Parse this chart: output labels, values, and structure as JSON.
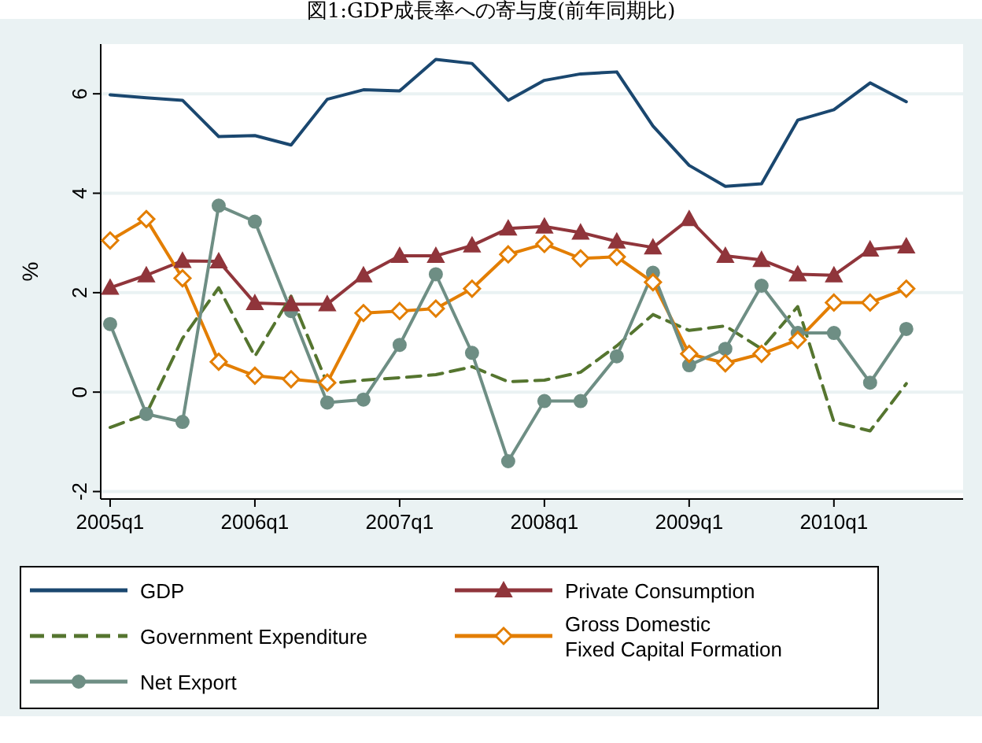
{
  "chart_data": {
    "type": "line",
    "title": "図1:GDP成長率への寄与度(前年同期比)",
    "ylabel": "%",
    "categories": [
      "2005q1",
      null,
      null,
      null,
      "2006q1",
      null,
      null,
      null,
      "2007q1",
      null,
      null,
      null,
      "2008q1",
      null,
      null,
      null,
      "2009q1",
      null,
      null,
      null,
      "2010q1",
      null,
      null
    ],
    "ylim": [
      -2.15,
      7.0
    ],
    "yticks": [
      -2,
      0,
      2,
      4,
      6
    ],
    "grid": "y",
    "legend": "bottom",
    "series": [
      {
        "name": "GDP",
        "color": "#1a476f",
        "marker": "none",
        "line_style": "solid",
        "values": [
          5.98,
          5.92,
          5.87,
          5.14,
          5.16,
          4.97,
          5.89,
          6.08,
          6.06,
          6.69,
          6.61,
          5.87,
          6.27,
          6.4,
          6.44,
          5.35,
          4.56,
          4.14,
          4.19,
          5.47,
          5.68,
          6.22,
          5.84
        ]
      },
      {
        "name": "Private Consumption",
        "color": "#90353b",
        "marker": "triangle",
        "line_style": "solid",
        "values": [
          2.1,
          2.35,
          2.64,
          2.63,
          1.79,
          1.77,
          1.77,
          2.35,
          2.74,
          2.74,
          2.95,
          3.29,
          3.33,
          3.21,
          3.03,
          2.91,
          3.48,
          2.74,
          2.66,
          2.37,
          2.35,
          2.87,
          2.93
        ]
      },
      {
        "name": "Government Expenditure",
        "color": "#55752f",
        "marker": "none",
        "line_style": "dashed",
        "values": [
          -0.71,
          -0.44,
          1.08,
          2.1,
          0.72,
          1.93,
          0.17,
          0.24,
          0.29,
          0.35,
          0.51,
          0.21,
          0.24,
          0.4,
          0.93,
          1.56,
          1.24,
          1.33,
          0.87,
          1.72,
          -0.6,
          -0.78,
          0.17
        ]
      },
      {
        "name": "Gross Domestic Fixed Capital Formation",
        "color": "#e37e00",
        "marker": "diamond",
        "line_style": "solid",
        "values": [
          3.05,
          3.48,
          2.29,
          0.61,
          0.33,
          0.26,
          0.19,
          1.59,
          1.63,
          1.68,
          2.08,
          2.77,
          2.98,
          2.69,
          2.72,
          2.21,
          0.77,
          0.58,
          0.77,
          1.05,
          1.8,
          1.8,
          2.08
        ]
      },
      {
        "name": "Net Export",
        "color": "#6e8e84",
        "marker": "circle",
        "line_style": "solid",
        "values": [
          1.37,
          -0.44,
          -0.6,
          3.75,
          3.43,
          1.63,
          -0.21,
          -0.15,
          0.95,
          2.37,
          0.79,
          -1.39,
          -0.18,
          -0.18,
          0.72,
          2.4,
          0.54,
          0.87,
          2.14,
          1.19,
          1.19,
          0.19,
          1.27
        ]
      }
    ]
  }
}
